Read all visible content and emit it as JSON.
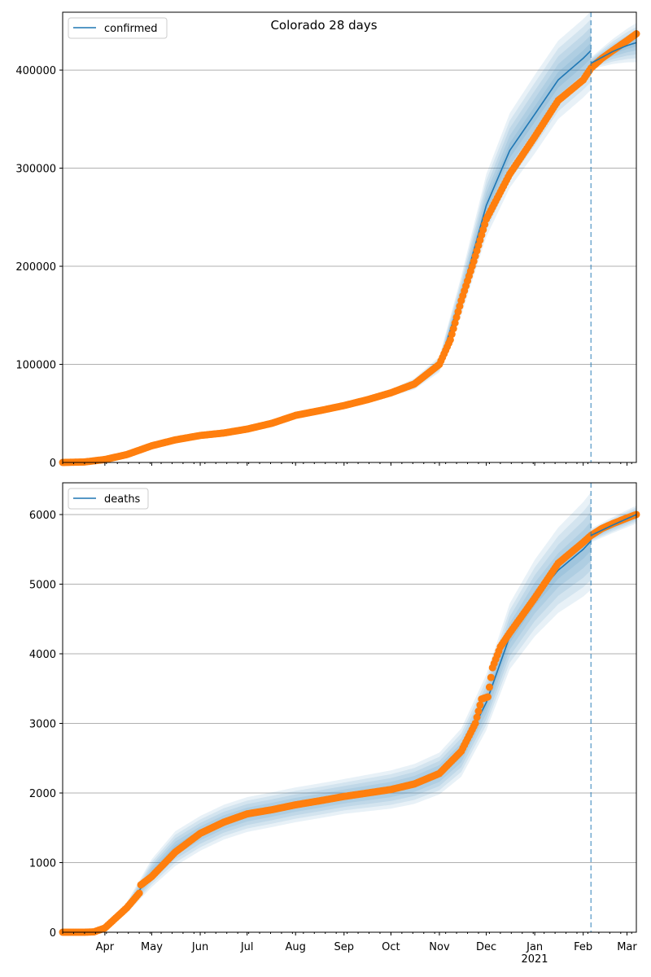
{
  "chart_data": [
    {
      "type": "line",
      "title": "Colorado 28 days",
      "legend": "confirmed",
      "legend_placement": "top-left",
      "ylim": [
        0,
        459000
      ],
      "yticks": [
        0,
        100000,
        200000,
        300000,
        400000
      ],
      "grid": true,
      "observed": [
        [
          0,
          0
        ],
        [
          14,
          500
        ],
        [
          27,
          3000
        ],
        [
          41,
          8000
        ],
        [
          57,
          17000
        ],
        [
          72,
          23000
        ],
        [
          88,
          27500
        ],
        [
          103,
          30000
        ],
        [
          118,
          34000
        ],
        [
          134,
          40000
        ],
        [
          149,
          48000
        ],
        [
          165,
          53000
        ],
        [
          180,
          58000
        ],
        [
          195,
          64000
        ],
        [
          210,
          71000
        ],
        [
          225,
          80000
        ],
        [
          241,
          100000
        ],
        [
          248,
          125000
        ],
        [
          255,
          165000
        ],
        [
          263,
          205000
        ],
        [
          271,
          248000
        ],
        [
          286,
          294000
        ],
        [
          302,
          332000
        ],
        [
          317,
          369000
        ],
        [
          333,
          390000
        ],
        [
          338,
          402000
        ],
        [
          345,
          412000
        ],
        [
          352,
          420000
        ],
        [
          361,
          430000
        ],
        [
          367,
          437000
        ]
      ],
      "model": [
        [
          0,
          0
        ],
        [
          14,
          500
        ],
        [
          27,
          3000
        ],
        [
          41,
          8000
        ],
        [
          57,
          17000
        ],
        [
          72,
          23000
        ],
        [
          88,
          27500
        ],
        [
          103,
          30000
        ],
        [
          118,
          34000
        ],
        [
          134,
          40000
        ],
        [
          149,
          48000
        ],
        [
          165,
          53000
        ],
        [
          180,
          58000
        ],
        [
          195,
          64000
        ],
        [
          210,
          71000
        ],
        [
          225,
          80000
        ],
        [
          241,
          100000
        ],
        [
          255,
          170000
        ],
        [
          271,
          262000
        ],
        [
          286,
          318000
        ],
        [
          302,
          355000
        ],
        [
          317,
          390000
        ],
        [
          333,
          412000
        ],
        [
          338,
          420000
        ]
      ],
      "model_spread": [
        [
          0,
          0
        ],
        [
          27,
          300
        ],
        [
          88,
          1500
        ],
        [
          149,
          2500
        ],
        [
          210,
          3500
        ],
        [
          241,
          8000
        ],
        [
          255,
          20000
        ],
        [
          271,
          32000
        ],
        [
          286,
          38000
        ],
        [
          302,
          40000
        ],
        [
          338,
          40000
        ]
      ],
      "forecast": [
        [
          338,
          407000
        ],
        [
          345,
          413000
        ],
        [
          352,
          419000
        ],
        [
          361,
          425000
        ],
        [
          367,
          428000
        ]
      ],
      "forecast_spread": [
        [
          338,
          6000
        ],
        [
          367,
          20000
        ]
      ]
    },
    {
      "type": "line",
      "legend": "deaths",
      "legend_placement": "top-left",
      "ylim": [
        0,
        6456
      ],
      "yticks": [
        0,
        1000,
        2000,
        3000,
        4000,
        5000,
        6000
      ],
      "grid": true,
      "observed": [
        [
          0,
          0
        ],
        [
          14,
          0
        ],
        [
          20,
          5
        ],
        [
          27,
          60
        ],
        [
          41,
          350
        ],
        [
          49,
          560
        ],
        [
          50,
          680
        ],
        [
          57,
          800
        ],
        [
          72,
          1150
        ],
        [
          88,
          1420
        ],
        [
          103,
          1580
        ],
        [
          118,
          1700
        ],
        [
          134,
          1760
        ],
        [
          149,
          1830
        ],
        [
          165,
          1890
        ],
        [
          180,
          1950
        ],
        [
          195,
          2000
        ],
        [
          210,
          2050
        ],
        [
          225,
          2130
        ],
        [
          241,
          2280
        ],
        [
          255,
          2600
        ],
        [
          264,
          3000
        ],
        [
          268,
          3350
        ],
        [
          272,
          3380
        ],
        [
          275,
          3800
        ],
        [
          280,
          4100
        ],
        [
          286,
          4300
        ],
        [
          302,
          4800
        ],
        [
          317,
          5300
        ],
        [
          333,
          5600
        ],
        [
          338,
          5700
        ],
        [
          345,
          5800
        ],
        [
          352,
          5870
        ],
        [
          361,
          5950
        ],
        [
          367,
          6000
        ]
      ],
      "model": [
        [
          0,
          0
        ],
        [
          20,
          5
        ],
        [
          27,
          60
        ],
        [
          41,
          350
        ],
        [
          57,
          850
        ],
        [
          72,
          1200
        ],
        [
          88,
          1420
        ],
        [
          103,
          1580
        ],
        [
          118,
          1690
        ],
        [
          134,
          1760
        ],
        [
          149,
          1830
        ],
        [
          165,
          1890
        ],
        [
          180,
          1950
        ],
        [
          195,
          2000
        ],
        [
          210,
          2050
        ],
        [
          225,
          2130
        ],
        [
          241,
          2280
        ],
        [
          255,
          2580
        ],
        [
          271,
          3300
        ],
        [
          286,
          4250
        ],
        [
          302,
          4800
        ],
        [
          317,
          5200
        ],
        [
          333,
          5500
        ],
        [
          338,
          5620
        ]
      ],
      "model_spread": [
        [
          0,
          0
        ],
        [
          27,
          30
        ],
        [
          41,
          80
        ],
        [
          57,
          200
        ],
        [
          72,
          250
        ],
        [
          180,
          250
        ],
        [
          241,
          300
        ],
        [
          271,
          400
        ],
        [
          302,
          550
        ],
        [
          338,
          700
        ]
      ],
      "forecast": [
        [
          338,
          5700
        ],
        [
          352,
          5850
        ],
        [
          367,
          6000
        ]
      ],
      "forecast_spread": [
        [
          338,
          100
        ],
        [
          367,
          130
        ]
      ]
    }
  ],
  "x_axis": {
    "day_range": [
      0,
      367
    ],
    "cutoff_day": 338,
    "ticks": [
      {
        "day": 27,
        "label": "Apr"
      },
      {
        "day": 57,
        "label": "May"
      },
      {
        "day": 88,
        "label": "Jun"
      },
      {
        "day": 118,
        "label": "Jul"
      },
      {
        "day": 149,
        "label": "Aug"
      },
      {
        "day": 180,
        "label": "Sep"
      },
      {
        "day": 210,
        "label": "Oct"
      },
      {
        "day": 241,
        "label": "Nov"
      },
      {
        "day": 271,
        "label": "Dec"
      },
      {
        "day": 302,
        "label": "Jan"
      },
      {
        "day": 333,
        "label": "Feb"
      },
      {
        "day": 361,
        "label": "Mar"
      }
    ],
    "year_label": "2021"
  },
  "colors": {
    "model": "#1f77b4",
    "observed": "#ff7f0e",
    "band": "#1f77b4"
  }
}
